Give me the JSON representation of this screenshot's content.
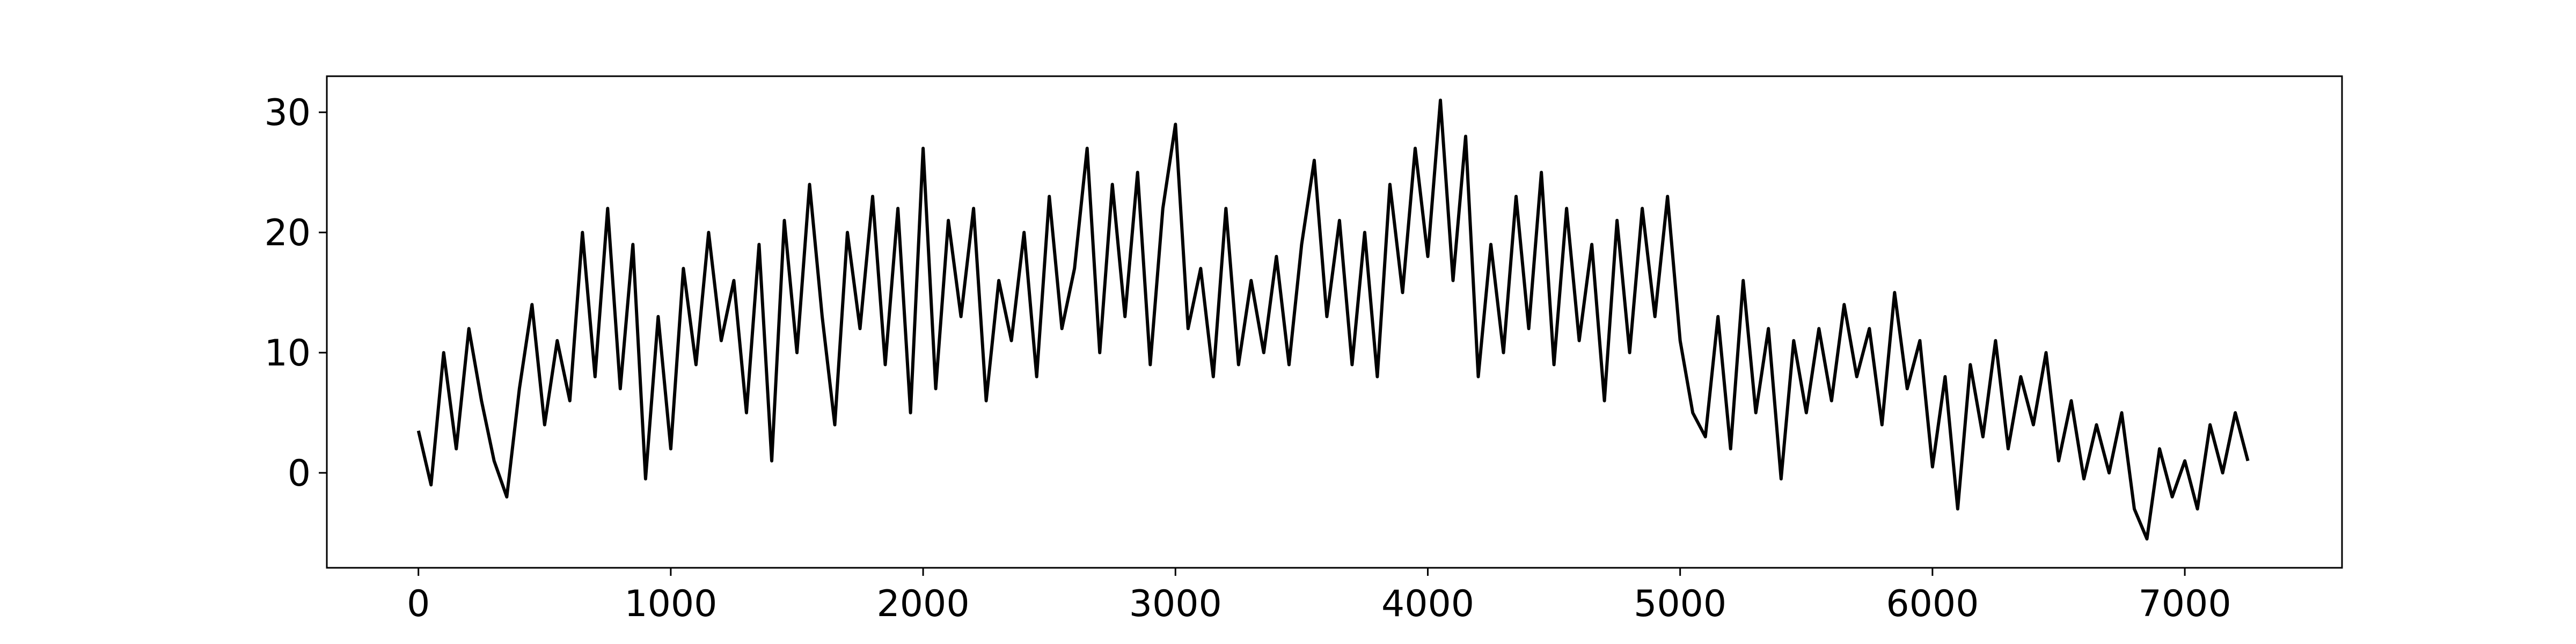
{
  "chart_data": {
    "type": "line",
    "x": [
      0,
      50,
      100,
      150,
      200,
      250,
      300,
      350,
      400,
      450,
      500,
      550,
      600,
      650,
      700,
      750,
      800,
      850,
      900,
      950,
      1000,
      1050,
      1100,
      1150,
      1200,
      1250,
      1300,
      1350,
      1400,
      1450,
      1500,
      1550,
      1600,
      1650,
      1700,
      1750,
      1800,
      1850,
      1900,
      1950,
      2000,
      2050,
      2100,
      2150,
      2200,
      2250,
      2300,
      2350,
      2400,
      2450,
      2500,
      2550,
      2600,
      2650,
      2700,
      2750,
      2800,
      2850,
      2900,
      2950,
      3000,
      3050,
      3100,
      3150,
      3200,
      3250,
      3300,
      3350,
      3400,
      3450,
      3500,
      3550,
      3600,
      3650,
      3700,
      3750,
      3800,
      3850,
      3900,
      3950,
      4000,
      4050,
      4100,
      4150,
      4200,
      4250,
      4300,
      4350,
      4400,
      4450,
      4500,
      4550,
      4600,
      4650,
      4700,
      4750,
      4800,
      4850,
      4900,
      4950,
      5000,
      5050,
      5100,
      5150,
      5200,
      5250,
      5300,
      5350,
      5400,
      5450,
      5500,
      5550,
      5600,
      5650,
      5700,
      5750,
      5800,
      5850,
      5900,
      5950,
      6000,
      6050,
      6100,
      6150,
      6200,
      6250,
      6300,
      6350,
      6400,
      6450,
      6500,
      6550,
      6600,
      6650,
      6700,
      6750,
      6800,
      6850,
      6900,
      6950,
      7000,
      7050,
      7100,
      7150,
      7200,
      7250
    ],
    "values": [
      3.5,
      -1,
      10,
      2,
      12,
      6,
      1,
      -2,
      7,
      14,
      4,
      11,
      6,
      20,
      8,
      22,
      7,
      19,
      -0.5,
      13,
      2,
      17,
      9,
      20,
      11,
      16,
      5,
      19,
      1,
      21,
      10,
      24,
      13,
      4,
      20,
      12,
      23,
      9,
      22,
      5,
      27,
      7,
      21,
      13,
      22,
      6,
      16,
      11,
      20,
      8,
      23,
      12,
      17,
      27,
      10,
      24,
      13,
      25,
      9,
      22,
      29,
      12,
      17,
      8,
      22,
      9,
      16,
      10,
      18,
      9,
      19,
      26,
      13,
      21,
      9,
      20,
      8,
      24,
      15,
      27,
      18,
      31,
      16,
      28,
      8,
      19,
      10,
      23,
      12,
      25,
      9,
      22,
      11,
      19,
      6,
      21,
      10,
      22,
      13,
      23,
      11,
      5,
      3,
      13,
      2,
      16,
      5,
      12,
      -0.5,
      11,
      5,
      12,
      6,
      14,
      8,
      12,
      4,
      15,
      7,
      11,
      0.5,
      8,
      -3,
      9,
      3,
      11,
      2,
      8,
      4,
      10,
      1,
      6,
      -0.5,
      4,
      0,
      5,
      -3,
      -5.5,
      2,
      -2,
      1,
      -3,
      4,
      0,
      5,
      1
    ],
    "color": "#000000",
    "xlim": [
      -363,
      7623
    ],
    "xticks": [
      0,
      1000,
      2000,
      3000,
      4000,
      5000,
      6000,
      7000
    ],
    "ylim": [
      -7.9,
      33.0
    ],
    "yticks": [
      0,
      10,
      20,
      30
    ]
  }
}
